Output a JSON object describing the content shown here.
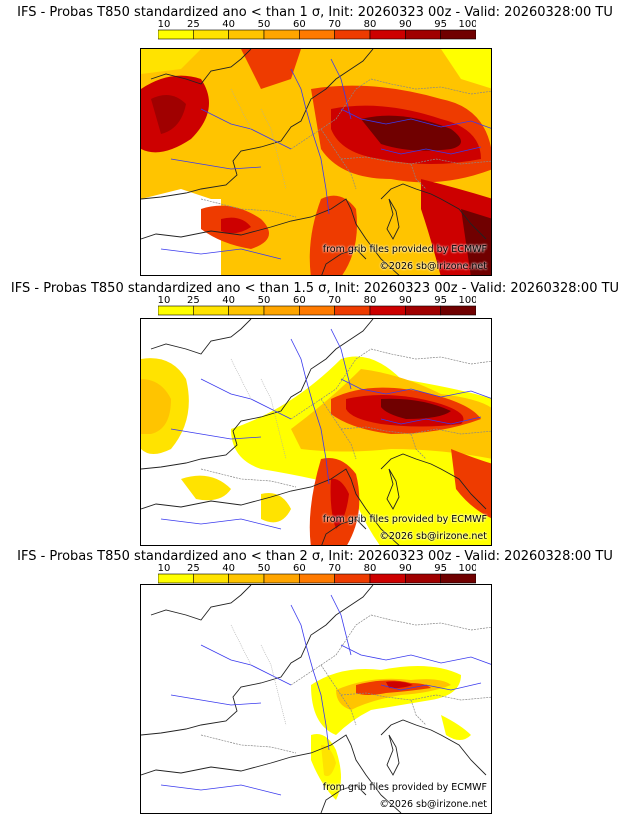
{
  "colorbar": {
    "ticks": [
      "10",
      "25",
      "40",
      "50",
      "60",
      "70",
      "80",
      "90",
      "95",
      "100"
    ],
    "colors": [
      "#ffff00",
      "#ffe300",
      "#ffc400",
      "#ffa500",
      "#ff7a00",
      "#ee3b00",
      "#cd0000",
      "#a00000",
      "#700000"
    ]
  },
  "panels": [
    {
      "title": "IFS - Probas T850  standardized ano < than 1 σ, Init: 20260323 00z - Valid: 20260328:00 TU",
      "threshold": "1 σ",
      "credit_line1": "from grib files provided by ECMWF",
      "credit_line2": "©2026 sb@irizone.net"
    },
    {
      "title": "IFS - Probas T850  standardized ano < than 1.5 σ, Init: 20260323 00z - Valid: 20260328:00 TU",
      "threshold": "1.5 σ",
      "credit_line1": "from grib files provided by ECMWF",
      "credit_line2": "©2026 sb@irizone.net"
    },
    {
      "title": "IFS - Probas T850  standardized ano < than 2 σ, Init: 20260323 00z - Valid: 20260328:00 TU",
      "threshold": "2 σ",
      "credit_line1": "from grib files provided by ECMWF",
      "credit_line2": "©2026 sb@irizone.net"
    }
  ]
}
